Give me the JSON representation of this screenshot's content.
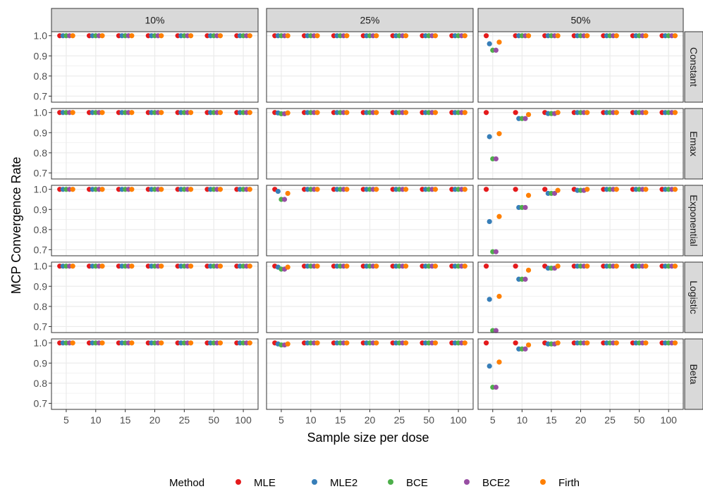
{
  "chart_data": {
    "type": "scatter",
    "xlabel": "Sample size per dose",
    "ylabel": "MCP Convergence Rate",
    "ylim": [
      0.67,
      1.02
    ],
    "y_ticks": [
      0.7,
      0.8,
      0.9,
      1.0
    ],
    "y_tick_labels": [
      "0.7",
      "0.8",
      "0.9",
      "1.0"
    ],
    "categories": [
      "5",
      "10",
      "15",
      "20",
      "25",
      "50",
      "100"
    ],
    "column_facets": [
      "10%",
      "25%",
      "50%"
    ],
    "row_facets": [
      "Constant",
      "Emax",
      "Exponential",
      "Logistic",
      "Beta"
    ],
    "legend": {
      "title": "Method",
      "position": "bottom"
    },
    "series": [
      {
        "name": "MLE",
        "color": "#E41A1C"
      },
      {
        "name": "MLE2",
        "color": "#377EB8"
      },
      {
        "name": "BCE",
        "color": "#4DAF4A"
      },
      {
        "name": "BCE2",
        "color": "#984EA3"
      },
      {
        "name": "Firth",
        "color": "#FF7F00"
      }
    ],
    "grid": true,
    "panels": [
      {
        "row": "Constant",
        "col": "10%",
        "values": [
          [
            1,
            1,
            1,
            1,
            1
          ],
          [
            1,
            1,
            1,
            1,
            1
          ],
          [
            1,
            1,
            1,
            1,
            1
          ],
          [
            1,
            1,
            1,
            1,
            1
          ],
          [
            1,
            1,
            1,
            1,
            1
          ],
          [
            1,
            1,
            1,
            1,
            1
          ],
          [
            1,
            1,
            1,
            1,
            1
          ]
        ]
      },
      {
        "row": "Constant",
        "col": "25%",
        "values": [
          [
            1,
            1,
            1,
            1,
            1
          ],
          [
            1,
            1,
            1,
            1,
            1
          ],
          [
            1,
            1,
            1,
            1,
            1
          ],
          [
            1,
            1,
            1,
            1,
            1
          ],
          [
            1,
            1,
            1,
            1,
            1
          ],
          [
            1,
            1,
            1,
            1,
            1
          ],
          [
            1,
            1,
            1,
            1,
            1
          ]
        ]
      },
      {
        "row": "Constant",
        "col": "50%",
        "values": [
          [
            1,
            0.96,
            0.928,
            0.928,
            0.968
          ],
          [
            1,
            1,
            1,
            1,
            1
          ],
          [
            1,
            1,
            1,
            1,
            1
          ],
          [
            1,
            1,
            1,
            1,
            1
          ],
          [
            1,
            1,
            1,
            1,
            1
          ],
          [
            1,
            1,
            1,
            1,
            1
          ],
          [
            1,
            1,
            1,
            1,
            1
          ]
        ]
      },
      {
        "row": "Emax",
        "col": "10%",
        "values": [
          [
            1,
            1,
            1,
            1,
            1
          ],
          [
            1,
            1,
            1,
            1,
            1
          ],
          [
            1,
            1,
            1,
            1,
            1
          ],
          [
            1,
            1,
            1,
            1,
            1
          ],
          [
            1,
            1,
            1,
            1,
            1
          ],
          [
            1,
            1,
            1,
            1,
            1
          ],
          [
            1,
            1,
            1,
            1,
            1
          ]
        ]
      },
      {
        "row": "Emax",
        "col": "25%",
        "values": [
          [
            1,
            0.998,
            0.994,
            0.994,
            0.998
          ],
          [
            1,
            1,
            1,
            1,
            1
          ],
          [
            1,
            1,
            1,
            1,
            1
          ],
          [
            1,
            1,
            1,
            1,
            1
          ],
          [
            1,
            1,
            1,
            1,
            1
          ],
          [
            1,
            1,
            1,
            1,
            1
          ],
          [
            1,
            1,
            1,
            1,
            1
          ]
        ]
      },
      {
        "row": "Emax",
        "col": "50%",
        "values": [
          [
            1,
            0.88,
            0.77,
            0.77,
            0.895
          ],
          [
            1,
            0.97,
            0.97,
            0.97,
            0.99
          ],
          [
            1,
            0.995,
            0.995,
            0.995,
            1
          ],
          [
            1,
            1,
            1,
            1,
            1
          ],
          [
            1,
            1,
            1,
            1,
            1
          ],
          [
            1,
            1,
            1,
            1,
            1
          ],
          [
            1,
            1,
            1,
            1,
            1
          ]
        ]
      },
      {
        "row": "Exponential",
        "col": "10%",
        "values": [
          [
            1,
            1,
            1,
            1,
            1
          ],
          [
            1,
            1,
            1,
            1,
            1
          ],
          [
            1,
            1,
            1,
            1,
            1
          ],
          [
            1,
            1,
            1,
            1,
            1
          ],
          [
            1,
            1,
            1,
            1,
            1
          ],
          [
            1,
            1,
            1,
            1,
            1
          ],
          [
            1,
            1,
            1,
            1,
            1
          ]
        ]
      },
      {
        "row": "Exponential",
        "col": "25%",
        "values": [
          [
            1,
            0.99,
            0.95,
            0.95,
            0.98
          ],
          [
            1,
            1,
            1,
            1,
            1
          ],
          [
            1,
            1,
            1,
            1,
            1
          ],
          [
            1,
            1,
            1,
            1,
            1
          ],
          [
            1,
            1,
            1,
            1,
            1
          ],
          [
            1,
            1,
            1,
            1,
            1
          ],
          [
            1,
            1,
            1,
            1,
            1
          ]
        ]
      },
      {
        "row": "Exponential",
        "col": "50%",
        "values": [
          [
            1,
            0.84,
            0.69,
            0.69,
            0.865
          ],
          [
            1,
            0.91,
            0.91,
            0.91,
            0.97
          ],
          [
            1,
            0.98,
            0.98,
            0.98,
            0.995
          ],
          [
            1,
            0.995,
            0.995,
            0.995,
            1
          ],
          [
            1,
            1,
            1,
            1,
            1
          ],
          [
            1,
            1,
            1,
            1,
            1
          ],
          [
            1,
            1,
            1,
            1,
            1
          ]
        ]
      },
      {
        "row": "Logistic",
        "col": "10%",
        "values": [
          [
            1,
            1,
            1,
            1,
            1
          ],
          [
            1,
            1,
            1,
            1,
            1
          ],
          [
            1,
            1,
            1,
            1,
            1
          ],
          [
            1,
            1,
            1,
            1,
            1
          ],
          [
            1,
            1,
            1,
            1,
            1
          ],
          [
            1,
            1,
            1,
            1,
            1
          ],
          [
            1,
            1,
            1,
            1,
            1
          ]
        ]
      },
      {
        "row": "Logistic",
        "col": "25%",
        "values": [
          [
            1,
            0.995,
            0.985,
            0.985,
            0.995
          ],
          [
            1,
            1,
            1,
            1,
            1
          ],
          [
            1,
            1,
            1,
            1,
            1
          ],
          [
            1,
            1,
            1,
            1,
            1
          ],
          [
            1,
            1,
            1,
            1,
            1
          ],
          [
            1,
            1,
            1,
            1,
            1
          ],
          [
            1,
            1,
            1,
            1,
            1
          ]
        ]
      },
      {
        "row": "Logistic",
        "col": "50%",
        "values": [
          [
            1,
            0.835,
            0.68,
            0.68,
            0.85
          ],
          [
            1,
            0.935,
            0.935,
            0.935,
            0.98
          ],
          [
            1,
            0.99,
            0.99,
            0.99,
            1
          ],
          [
            1,
            1,
            1,
            1,
            1
          ],
          [
            1,
            1,
            1,
            1,
            1
          ],
          [
            1,
            1,
            1,
            1,
            1
          ],
          [
            1,
            1,
            1,
            1,
            1
          ]
        ]
      },
      {
        "row": "Beta",
        "col": "10%",
        "values": [
          [
            1,
            1,
            1,
            1,
            1
          ],
          [
            1,
            1,
            1,
            1,
            1
          ],
          [
            1,
            1,
            1,
            1,
            1
          ],
          [
            1,
            1,
            1,
            1,
            1
          ],
          [
            1,
            1,
            1,
            1,
            1
          ],
          [
            1,
            1,
            1,
            1,
            1
          ],
          [
            1,
            1,
            1,
            1,
            1
          ]
        ]
      },
      {
        "row": "Beta",
        "col": "25%",
        "values": [
          [
            1,
            0.995,
            0.99,
            0.99,
            0.995
          ],
          [
            1,
            1,
            1,
            1,
            1
          ],
          [
            1,
            1,
            1,
            1,
            1
          ],
          [
            1,
            1,
            1,
            1,
            1
          ],
          [
            1,
            1,
            1,
            1,
            1
          ],
          [
            1,
            1,
            1,
            1,
            1
          ],
          [
            1,
            1,
            1,
            1,
            1
          ]
        ]
      },
      {
        "row": "Beta",
        "col": "50%",
        "values": [
          [
            1,
            0.885,
            0.78,
            0.78,
            0.905
          ],
          [
            1,
            0.97,
            0.97,
            0.97,
            0.99
          ],
          [
            1,
            0.995,
            0.995,
            0.995,
            1
          ],
          [
            1,
            1,
            1,
            1,
            1
          ],
          [
            1,
            1,
            1,
            1,
            1
          ],
          [
            1,
            1,
            1,
            1,
            1
          ],
          [
            1,
            1,
            1,
            1,
            1
          ]
        ]
      }
    ]
  }
}
